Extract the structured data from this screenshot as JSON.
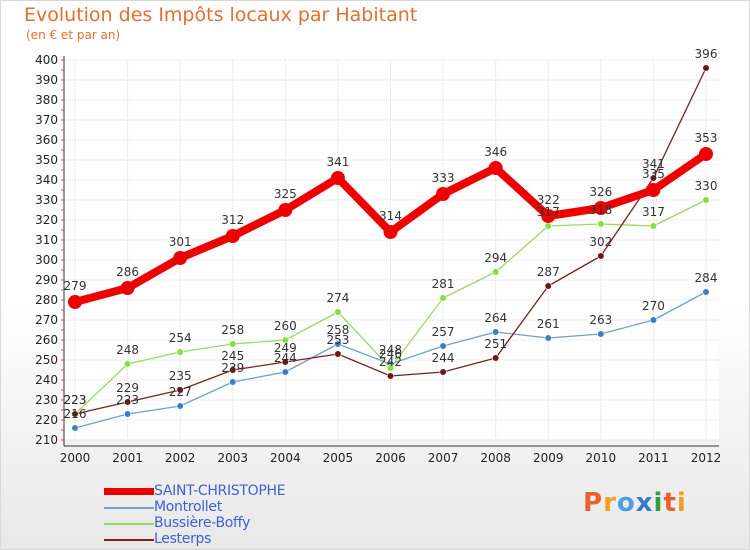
{
  "chart_data": {
    "type": "line",
    "title": "Evolution des Impôts locaux par Habitant",
    "subtitle": "(en € et par an)",
    "x": [
      "2000",
      "2001",
      "2002",
      "2003",
      "2004",
      "2005",
      "2006",
      "2007",
      "2008",
      "2009",
      "2010",
      "2011",
      "2012"
    ],
    "ylim": [
      210,
      400
    ],
    "yticks": [
      210,
      220,
      230,
      240,
      250,
      260,
      270,
      280,
      290,
      300,
      310,
      320,
      330,
      340,
      350,
      360,
      370,
      380,
      390,
      400
    ],
    "grid": true,
    "legend_position": "bottom-left",
    "series": [
      {
        "name": "SAINT-CHRISTOPHE",
        "color": "#ee0000",
        "marker": "#ee0000",
        "values": [
          279,
          286,
          301,
          312,
          325,
          341,
          314,
          333,
          346,
          322,
          326,
          335,
          353
        ]
      },
      {
        "name": "Montrollet",
        "color": "#6fa0cc",
        "marker": "#3a80c8",
        "values": [
          216,
          223,
          227,
          239,
          244,
          258,
          248,
          257,
          264,
          261,
          263,
          270,
          284
        ]
      },
      {
        "name": "Bussière-Boffy",
        "color": "#99d866",
        "marker": "#88dd44",
        "values": [
          223,
          248,
          254,
          258,
          260,
          274,
          246,
          281,
          294,
          317,
          318,
          317,
          330
        ]
      },
      {
        "name": "Lesterps",
        "color": "#7a2020",
        "marker": "#6b1515",
        "values": [
          223,
          229,
          235,
          245,
          249,
          253,
          242,
          244,
          251,
          287,
          302,
          341,
          396
        ]
      }
    ]
  },
  "brand": {
    "name": "Proxiti"
  }
}
